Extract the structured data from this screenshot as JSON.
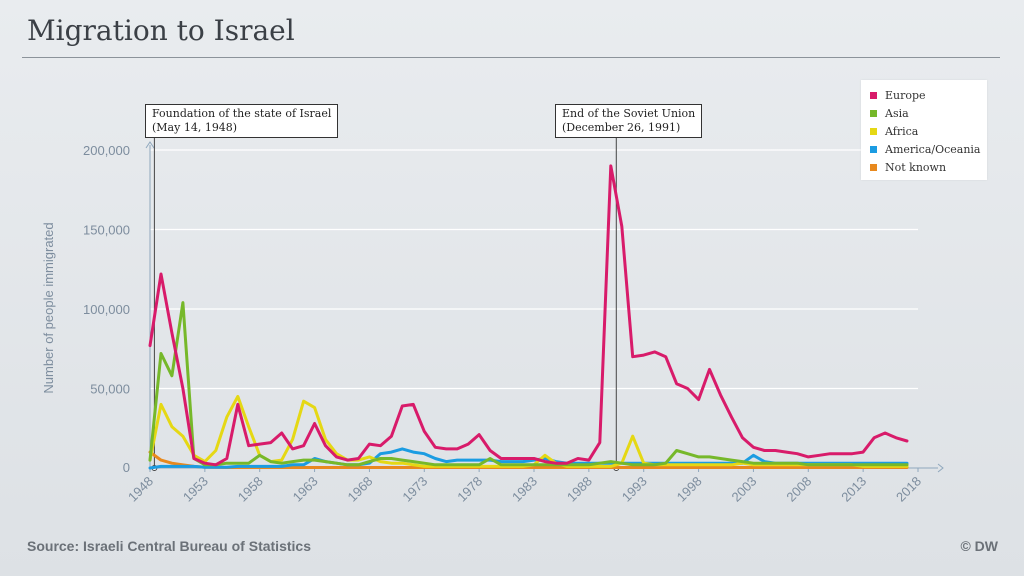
{
  "title": "Migration to Israel",
  "source": "Source: Israeli Central Bureau of Statistics",
  "credit": "© DW",
  "annotations": [
    {
      "line1": "Foundation of the state of Israel",
      "line2": "(May 14, 1948)",
      "x": 1948.4
    },
    {
      "line1": "End of the Soviet Union",
      "line2": "(December 26, 1991)",
      "x": 1990.5
    }
  ],
  "chart_data": {
    "type": "line",
    "ylabel": "Number of people immigrated",
    "xlabel": "",
    "xlim": [
      1948,
      2018
    ],
    "ylim": [
      0,
      200000
    ],
    "x_ticks": [
      "1948",
      "1953",
      "1958",
      "1963",
      "1968",
      "1973",
      "1978",
      "1983",
      "1988",
      "1993",
      "1998",
      "2003",
      "2008",
      "2013",
      "2018"
    ],
    "y_ticks": [
      "0",
      "50,000",
      "100,000",
      "150,000",
      "200,000"
    ],
    "legend_position": "top-right",
    "series": [
      {
        "name": "Europe",
        "color": "#d81b6a",
        "x": [
          1948,
          1949,
          1950,
          1951,
          1952,
          1953,
          1954,
          1955,
          1956,
          1957,
          1958,
          1959,
          1960,
          1961,
          1962,
          1963,
          1964,
          1965,
          1966,
          1967,
          1968,
          1969,
          1970,
          1971,
          1972,
          1973,
          1974,
          1975,
          1976,
          1977,
          1978,
          1979,
          1980,
          1981,
          1982,
          1983,
          1984,
          1985,
          1986,
          1987,
          1988,
          1989,
          1990,
          1991,
          1992,
          1993,
          1994,
          1995,
          1996,
          1997,
          1998,
          1999,
          2000,
          2001,
          2002,
          2003,
          2004,
          2005,
          2006,
          2007,
          2008,
          2009,
          2010,
          2011,
          2012,
          2013,
          2014,
          2015,
          2016,
          2017
        ],
        "y": [
          77000,
          122000,
          85000,
          50000,
          6000,
          3000,
          2000,
          6000,
          40000,
          14000,
          15000,
          16000,
          22000,
          12000,
          14000,
          28000,
          14000,
          7000,
          5000,
          6000,
          15000,
          14000,
          20000,
          39000,
          40000,
          23000,
          13000,
          12000,
          12000,
          15000,
          21000,
          11000,
          6000,
          6000,
          6000,
          6000,
          4000,
          3000,
          3000,
          6000,
          5000,
          16000,
          190000,
          152000,
          70000,
          71000,
          73000,
          70000,
          53000,
          50000,
          43000,
          62000,
          46000,
          32000,
          19000,
          13000,
          11000,
          11000,
          10000,
          9000,
          7000,
          8000,
          9000,
          9000,
          9000,
          10000,
          19000,
          22000,
          19000,
          17000
        ]
      },
      {
        "name": "Asia",
        "color": "#76b82a",
        "x": [
          1948,
          1949,
          1950,
          1951,
          1952,
          1953,
          1954,
          1955,
          1956,
          1957,
          1958,
          1959,
          1960,
          1961,
          1962,
          1963,
          1964,
          1965,
          1966,
          1967,
          1968,
          1969,
          1970,
          1971,
          1972,
          1973,
          1974,
          1975,
          1976,
          1977,
          1978,
          1979,
          1980,
          1981,
          1982,
          1983,
          1984,
          1985,
          1986,
          1987,
          1988,
          1989,
          1990,
          1991,
          1992,
          1993,
          1994,
          1995,
          1996,
          1997,
          1998,
          1999,
          2000,
          2001,
          2002,
          2003,
          2004,
          2005,
          2006,
          2007,
          2008,
          2009,
          2010,
          2011,
          2012,
          2013,
          2014,
          2015,
          2016,
          2017
        ],
        "y": [
          5000,
          72000,
          58000,
          104000,
          6000,
          2000,
          2000,
          3000,
          3000,
          3000,
          8000,
          4000,
          3000,
          4000,
          5000,
          5000,
          4000,
          3000,
          2000,
          2000,
          4000,
          6000,
          6000,
          5000,
          4000,
          3000,
          2000,
          2000,
          2000,
          2000,
          2000,
          6000,
          2000,
          2000,
          2000,
          2000,
          2000,
          2000,
          2000,
          2000,
          2000,
          3000,
          4000,
          3000,
          2000,
          2000,
          2000,
          3000,
          11000,
          9000,
          7000,
          7000,
          6000,
          5000,
          4000,
          3000,
          3000,
          3000,
          3000,
          3000,
          2000,
          2000,
          2000,
          2000,
          2000,
          2000,
          2000,
          2000,
          2000,
          2000
        ]
      },
      {
        "name": "Africa",
        "color": "#e5d814",
        "x": [
          1948,
          1949,
          1950,
          1951,
          1952,
          1953,
          1954,
          1955,
          1956,
          1957,
          1958,
          1959,
          1960,
          1961,
          1962,
          1963,
          1964,
          1965,
          1966,
          1967,
          1968,
          1969,
          1970,
          1971,
          1972,
          1973,
          1974,
          1975,
          1976,
          1977,
          1978,
          1979,
          1980,
          1981,
          1982,
          1983,
          1984,
          1985,
          1986,
          1987,
          1988,
          1989,
          1990,
          1991,
          1992,
          1993,
          1994,
          1995,
          1996,
          1997,
          1998,
          1999,
          2000,
          2001,
          2002,
          2003,
          2004,
          2005,
          2006,
          2007,
          2008,
          2009,
          2010,
          2011,
          2012,
          2013,
          2014,
          2015,
          2016,
          2017
        ],
        "y": [
          5000,
          40000,
          26000,
          20000,
          8000,
          4000,
          11000,
          32000,
          45000,
          26000,
          8000,
          4000,
          5000,
          18000,
          42000,
          38000,
          18000,
          9000,
          5000,
          5000,
          7000,
          4000,
          3000,
          3000,
          2000,
          1000,
          1000,
          1000,
          1000,
          1000,
          1000,
          1000,
          1000,
          1000,
          1000,
          2000,
          8000,
          3000,
          1000,
          1000,
          1000,
          1000,
          1000,
          3000,
          20000,
          3000,
          2000,
          2000,
          2000,
          2000,
          2000,
          2000,
          2000,
          2000,
          3000,
          2000,
          2000,
          2000,
          2000,
          2000,
          2000,
          2000,
          2000,
          2000,
          2000,
          1000,
          1000,
          1000,
          1000,
          1000
        ]
      },
      {
        "name": "America/Oceania",
        "color": "#1b9ce2",
        "x": [
          1948,
          1949,
          1950,
          1951,
          1952,
          1953,
          1954,
          1955,
          1956,
          1957,
          1958,
          1959,
          1960,
          1961,
          1962,
          1963,
          1964,
          1965,
          1966,
          1967,
          1968,
          1969,
          1970,
          1971,
          1972,
          1973,
          1974,
          1975,
          1976,
          1977,
          1978,
          1979,
          1980,
          1981,
          1982,
          1983,
          1984,
          1985,
          1986,
          1987,
          1988,
          1989,
          1990,
          1991,
          1992,
          1993,
          1994,
          1995,
          1996,
          1997,
          1998,
          1999,
          2000,
          2001,
          2002,
          2003,
          2004,
          2005,
          2006,
          2007,
          2008,
          2009,
          2010,
          2011,
          2012,
          2013,
          2014,
          2015,
          2016,
          2017
        ],
        "y": [
          0,
          1000,
          1000,
          1000,
          1000,
          500,
          500,
          500,
          1000,
          1000,
          1000,
          1000,
          1000,
          2000,
          2000,
          6000,
          4000,
          3000,
          2000,
          2000,
          3000,
          9000,
          10000,
          12000,
          10000,
          9000,
          6000,
          4000,
          5000,
          5000,
          5000,
          5000,
          4000,
          4000,
          4000,
          5000,
          6000,
          4000,
          3000,
          3000,
          3000,
          3000,
          3000,
          3000,
          3000,
          3000,
          3000,
          3000,
          3000,
          3000,
          3000,
          3000,
          3000,
          3000,
          3000,
          8000,
          4000,
          3000,
          3000,
          3000,
          3000,
          3000,
          3000,
          3000,
          3000,
          3000,
          3000,
          3000,
          3000,
          3000
        ]
      },
      {
        "name": "Not known",
        "color": "#e8891e",
        "x": [
          1948,
          1949,
          1950,
          1951,
          1952,
          1953,
          1955,
          1960,
          1970,
          1980,
          1990,
          2000,
          2010,
          2017
        ],
        "y": [
          10000,
          5000,
          3000,
          2000,
          1000,
          500,
          300,
          300,
          300,
          300,
          300,
          300,
          300,
          300
        ]
      }
    ]
  }
}
